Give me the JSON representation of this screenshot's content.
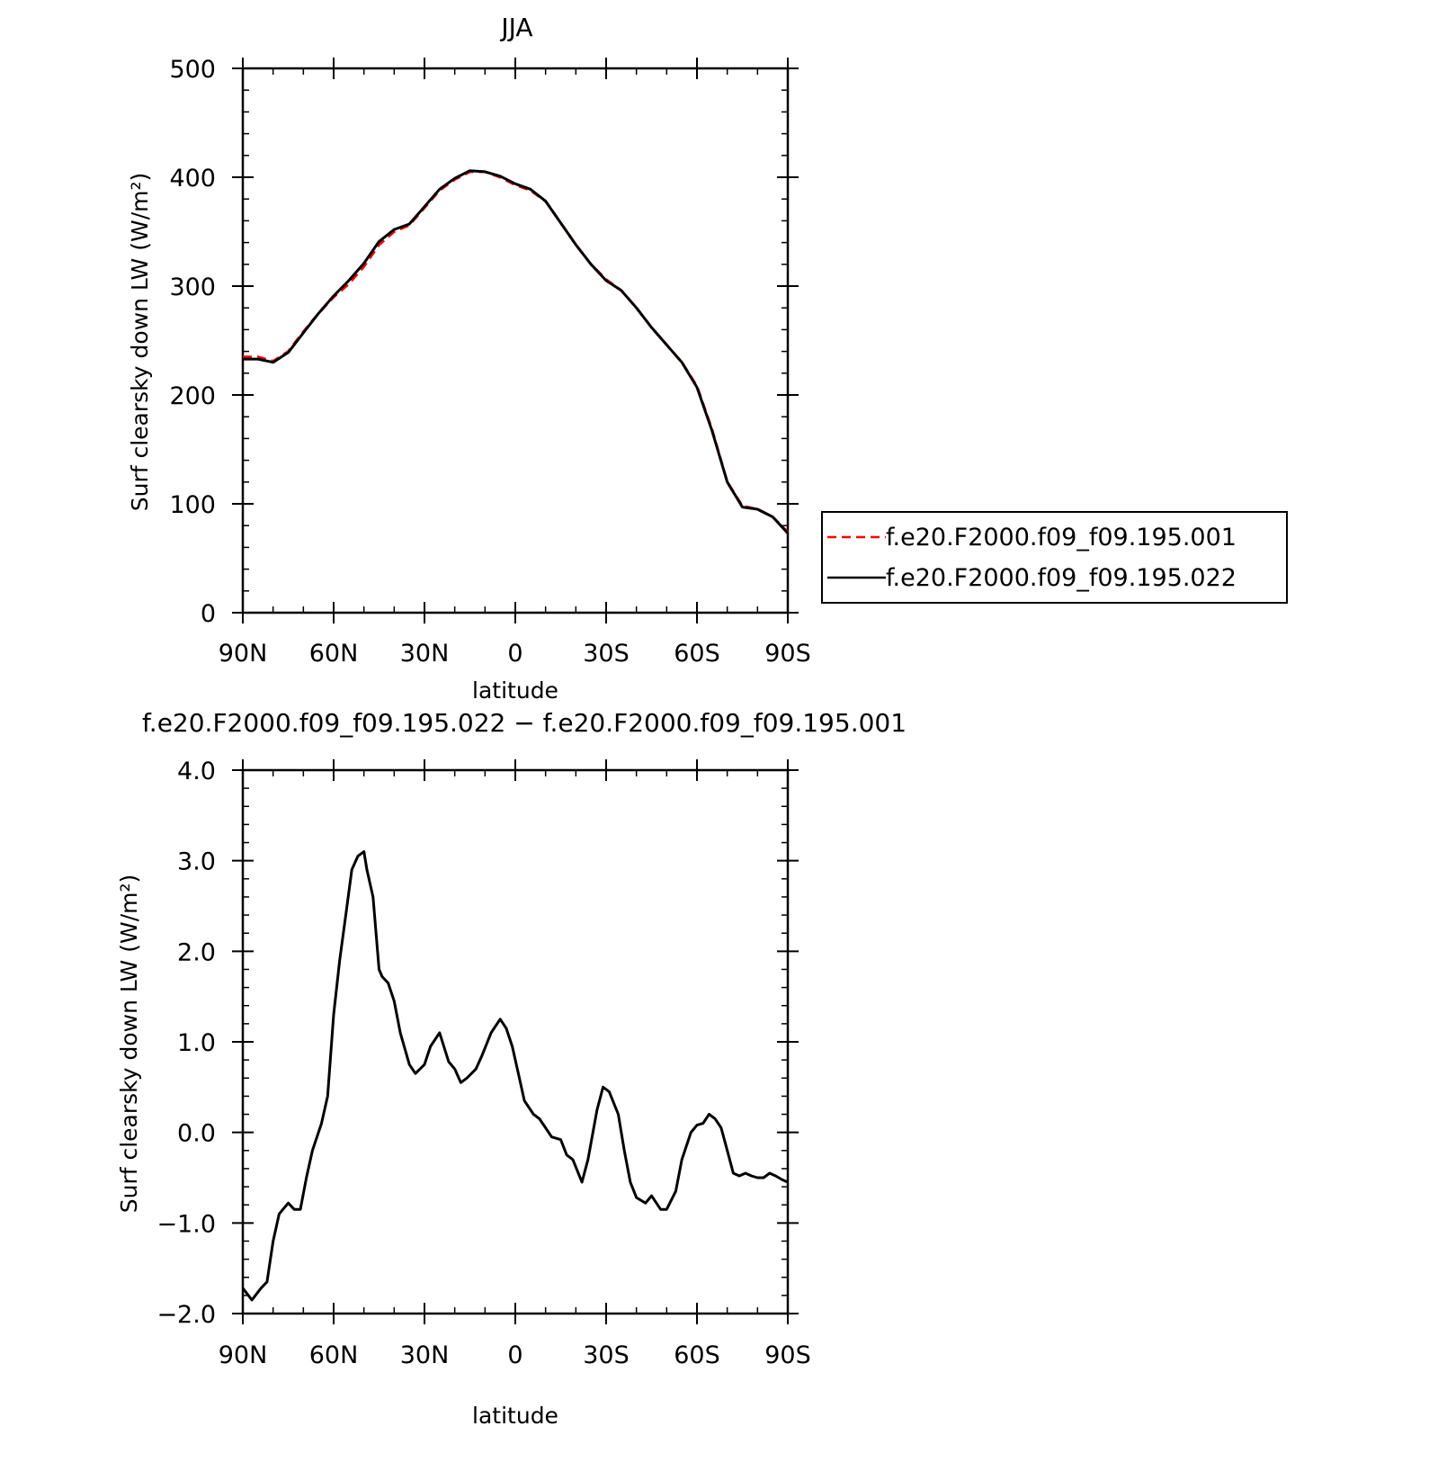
{
  "chart_data": [
    {
      "type": "line",
      "title": "JJA",
      "xlabel": "latitude",
      "ylabel": "Surf clearsky down LW (W/m²)",
      "x_tick_labels": [
        "90N",
        "60N",
        "30N",
        "0",
        "30S",
        "60S",
        "90S"
      ],
      "xlim": [
        90,
        -90
      ],
      "y_tick_labels": [
        "0",
        "100",
        "200",
        "300",
        "400",
        "500"
      ],
      "ylim": [
        0,
        500
      ],
      "legend_position": "right",
      "series": [
        {
          "name": "f.e20.F2000.f09_f09.195.001",
          "color": "#ff0000",
          "style": "dashed",
          "x": [
            90,
            85,
            80,
            75,
            70,
            65,
            60,
            55,
            50,
            45,
            40,
            35,
            30,
            25,
            20,
            15,
            10,
            5,
            0,
            -5,
            -10,
            -15,
            -20,
            -25,
            -30,
            -35,
            -40,
            -45,
            -50,
            -55,
            -60,
            -65,
            -70,
            -75,
            -80,
            -85,
            -90
          ],
          "values": [
            235,
            235,
            231,
            240,
            258,
            275,
            290,
            302,
            318,
            338,
            350,
            356,
            372,
            388,
            398,
            405,
            405,
            400,
            393,
            388,
            378,
            358,
            338,
            320,
            306,
            296,
            280,
            262,
            246,
            230,
            208,
            168,
            120,
            98,
            95,
            88,
            74
          ]
        },
        {
          "name": "f.e20.F2000.f09_f09.195.022",
          "color": "#000000",
          "style": "solid",
          "x": [
            90,
            85,
            80,
            75,
            70,
            65,
            60,
            55,
            50,
            45,
            40,
            35,
            30,
            25,
            20,
            15,
            10,
            5,
            0,
            -5,
            -10,
            -15,
            -20,
            -25,
            -30,
            -35,
            -40,
            -45,
            -50,
            -55,
            -60,
            -65,
            -70,
            -75,
            -80,
            -85,
            -90
          ],
          "values": [
            233,
            233,
            230,
            239,
            257,
            275,
            291,
            305,
            321,
            341,
            352,
            357,
            373,
            389,
            399,
            406,
            405,
            401,
            394,
            389,
            378,
            358,
            338,
            320,
            305,
            296,
            280,
            262,
            246,
            230,
            207,
            167,
            120,
            97,
            95,
            88,
            73
          ]
        }
      ]
    },
    {
      "type": "line",
      "title": "f.e20.F2000.f09_f09.195.022 − f.e20.F2000.f09_f09.195.001",
      "xlabel": "latitude",
      "ylabel": "Surf clearsky down LW (W/m²)",
      "x_tick_labels": [
        "90N",
        "60N",
        "30N",
        "0",
        "30S",
        "60S",
        "90S"
      ],
      "xlim": [
        90,
        -90
      ],
      "y_tick_labels": [
        "−2.0",
        "−1.0",
        "0.0",
        "1.0",
        "2.0",
        "3.0",
        "4.0"
      ],
      "ylim": [
        -2,
        4
      ],
      "series": [
        {
          "color": "#000000",
          "style": "solid",
          "x": [
            90,
            87,
            84,
            82,
            80,
            78,
            75,
            73,
            71,
            69,
            67,
            64,
            62,
            60,
            58,
            56,
            54,
            52,
            50,
            49,
            47,
            45,
            44,
            42,
            40,
            38,
            35,
            33,
            30,
            28,
            25,
            22,
            20,
            18,
            16,
            13,
            11,
            8,
            5,
            3,
            1,
            -1,
            -3,
            -6,
            -8,
            -10,
            -12,
            -15,
            -17,
            -19,
            -22,
            -24,
            -27,
            -29,
            -31,
            -34,
            -36,
            -38,
            -40,
            -43,
            -45,
            -48,
            -50,
            -53,
            -55,
            -58,
            -60,
            -62,
            -64,
            -66,
            -68,
            -70,
            -72,
            -74,
            -76,
            -78,
            -80,
            -82,
            -84,
            -86,
            -88,
            -90
          ],
          "values": [
            -1.72,
            -1.85,
            -1.72,
            -1.65,
            -1.2,
            -0.9,
            -0.78,
            -0.85,
            -0.85,
            -0.5,
            -0.2,
            0.1,
            0.4,
            1.3,
            1.9,
            2.4,
            2.9,
            3.05,
            3.1,
            2.9,
            2.6,
            1.8,
            1.72,
            1.65,
            1.45,
            1.1,
            0.75,
            0.65,
            0.75,
            0.95,
            1.1,
            0.78,
            0.7,
            0.55,
            0.6,
            0.7,
            0.85,
            1.1,
            1.25,
            1.15,
            0.95,
            0.65,
            0.35,
            0.2,
            0.15,
            0.05,
            -0.05,
            -0.08,
            -0.25,
            -0.3,
            -0.55,
            -0.3,
            0.25,
            0.5,
            0.45,
            0.2,
            -0.2,
            -0.55,
            -0.72,
            -0.78,
            -0.7,
            -0.85,
            -0.85,
            -0.65,
            -0.3,
            0.0,
            0.08,
            0.1,
            0.2,
            0.15,
            0.05,
            -0.2,
            -0.45,
            -0.48,
            -0.45,
            -0.48,
            -0.5,
            -0.5,
            -0.45,
            -0.48,
            -0.52,
            -0.55
          ]
        }
      ]
    }
  ]
}
